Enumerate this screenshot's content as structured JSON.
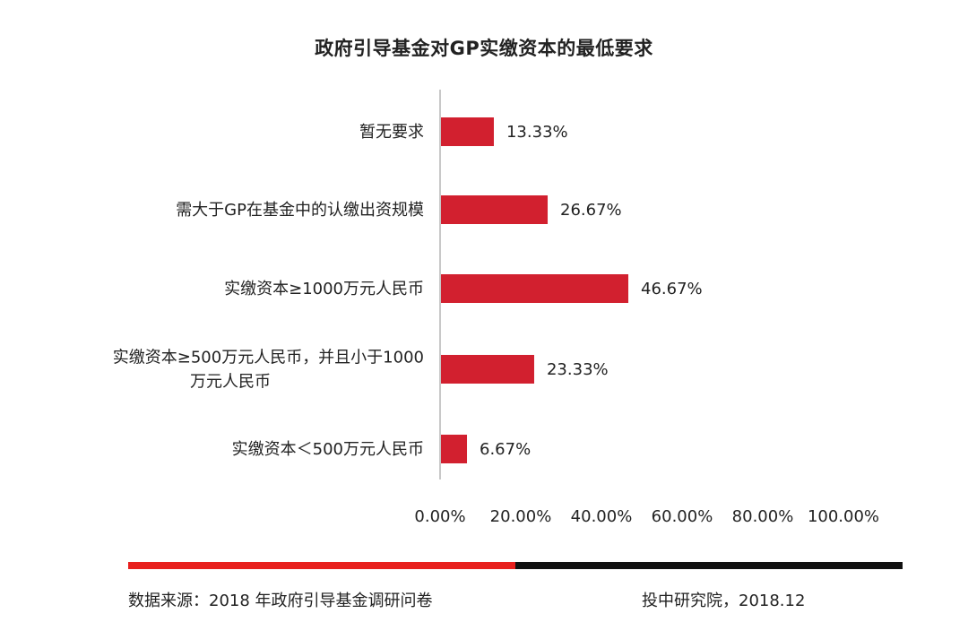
{
  "chart_data": {
    "type": "bar",
    "orientation": "horizontal",
    "title": "政府引导基金对GP实缴资本的最低要求",
    "categories": [
      [
        "暂无要求"
      ],
      [
        "需大于GP在基金中的认缴出资规模"
      ],
      [
        "实缴资本≥1000万元人民币"
      ],
      [
        "实缴资本≥500万元人民币，并且小于1000",
        "万元人民币"
      ],
      [
        "实缴资本＜500万元人民币"
      ]
    ],
    "values": [
      13.33,
      26.67,
      46.67,
      23.33,
      6.67
    ],
    "value_labels": [
      "13.33%",
      "26.67%",
      "46.67%",
      "23.33%",
      "6.67%"
    ],
    "xlim": [
      0,
      100
    ],
    "x_ticks": [
      0,
      20,
      40,
      60,
      80,
      100
    ],
    "x_tick_labels": [
      "0.00%",
      "20.00%",
      "40.00%",
      "60.00%",
      "80.00%",
      "100.00%"
    ],
    "grid": false,
    "legend": "none",
    "bar_color": "#d2202f"
  },
  "footer": {
    "source": "数据来源：2018 年政府引导基金调研问卷",
    "org": "投中研究院，2018.12",
    "bar_colors": [
      "#e8201e",
      "#111111"
    ]
  }
}
